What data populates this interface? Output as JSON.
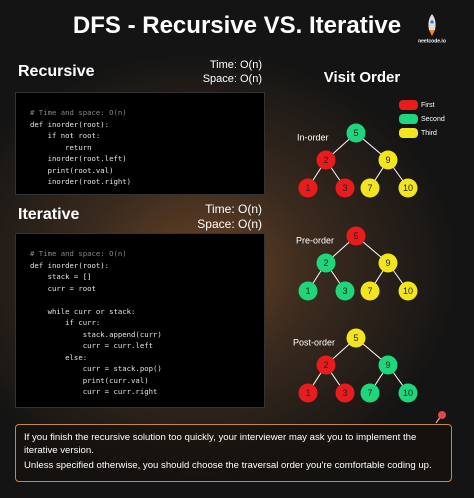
{
  "title": "DFS - Recursive VS. Iterative",
  "logo": "neetcode.io",
  "recursive": {
    "heading": "Recursive",
    "time": "Time: O(n)",
    "space": "Space: O(n)",
    "code": [
      [
        "# Time and space: O(n)",
        "def inorder(root):",
        "    if not root:",
        "        return",
        "    inorder(root.left)",
        "    print(root.val)",
        "    inorder(root.right)"
      ]
    ]
  },
  "iterative": {
    "heading": "Iterative",
    "time": "Time: O(n)",
    "space": "Space: O(n)",
    "code": [
      [
        "# Time and space: O(n)",
        "def inorder(root):",
        "    stack = []",
        "    curr = root"
      ],
      [
        "    while curr or stack:",
        "        if curr:",
        "            stack.append(curr)",
        "            curr = curr.left",
        "        else:",
        "            curr = stack.pop()",
        "            print(curr.val)",
        "            curr = curr.right"
      ]
    ]
  },
  "visit_order": {
    "title": "Visit Order",
    "legend": [
      {
        "label": "First",
        "color": "#e81c1c"
      },
      {
        "label": "Second",
        "color": "#1fd67a"
      },
      {
        "label": "Third",
        "color": "#f2e51d"
      }
    ],
    "trees": [
      {
        "label": "In-order",
        "nodes": [
          {
            "value": 5,
            "color": "#1fd67a"
          },
          {
            "value": 2,
            "color": "#e81c1c"
          },
          {
            "value": 9,
            "color": "#f2e51d"
          },
          {
            "value": 1,
            "color": "#e81c1c"
          },
          {
            "value": 3,
            "color": "#e81c1c"
          },
          {
            "value": 7,
            "color": "#f2e51d"
          },
          {
            "value": 10,
            "color": "#f2e51d"
          }
        ]
      },
      {
        "label": "Pre-order",
        "nodes": [
          {
            "value": 5,
            "color": "#e81c1c"
          },
          {
            "value": 2,
            "color": "#1fd67a"
          },
          {
            "value": 9,
            "color": "#f2e51d"
          },
          {
            "value": 1,
            "color": "#1fd67a"
          },
          {
            "value": 3,
            "color": "#1fd67a"
          },
          {
            "value": 7,
            "color": "#f2e51d"
          },
          {
            "value": 10,
            "color": "#f2e51d"
          }
        ]
      },
      {
        "label": "Post-order",
        "nodes": [
          {
            "value": 5,
            "color": "#f2e51d"
          },
          {
            "value": 2,
            "color": "#e81c1c"
          },
          {
            "value": 9,
            "color": "#1fd67a"
          },
          {
            "value": 1,
            "color": "#e81c1c"
          },
          {
            "value": 3,
            "color": "#e81c1c"
          },
          {
            "value": 7,
            "color": "#1fd67a"
          },
          {
            "value": 10,
            "color": "#1fd67a"
          }
        ]
      }
    ]
  },
  "footer": {
    "lines": [
      "If you finish the recursive solution too quickly, your interviewer may ask you to implement the iterative version.",
      "Unless specified otherwise, you should choose the traversal order you're comfortable coding up."
    ]
  }
}
